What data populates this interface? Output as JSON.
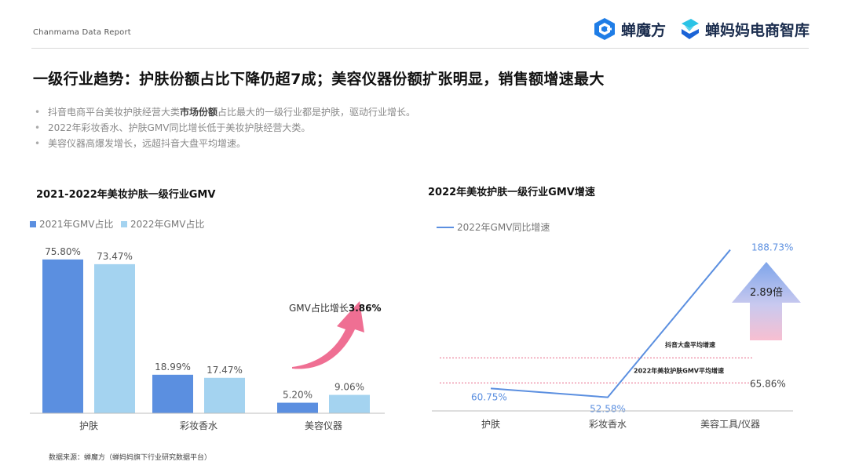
{
  "header": {
    "report_label": "Chanmama Data Report",
    "logo_primary_text": "蝉魔方",
    "logo_secondary_text": "蝉妈妈电商智库"
  },
  "title": "一级行业趋势：护肤份额占比下降仍超7成；美容仪器份额扩张明显，销售额增速最大",
  "bullets": [
    {
      "before": "抖音电商平台美妆护肤经营大类",
      "bold": "市场份额",
      "after": "占比最大的一级行业都是护肤，驱动行业增长。"
    },
    {
      "before": "2022年彩妆香水、护肤GMV同比增长低于美妆护肤经营大类。",
      "bold": "",
      "after": ""
    },
    {
      "before": "美容仪器高爆发增长，远超抖音大盘平均增速。",
      "bold": "",
      "after": ""
    }
  ],
  "chart_data": [
    {
      "type": "bar",
      "title": "2021-2022年美妆护肤一级行业GMV",
      "categories": [
        "护肤",
        "彩妆香水",
        "美容仪器"
      ],
      "series": [
        {
          "name": "2021年GMV占比",
          "values": [
            75.8,
            18.99,
            5.2
          ],
          "labels": [
            "75.80%",
            "18.99%",
            "5.20%"
          ],
          "color": "#5b8fe0"
        },
        {
          "name": "2022年GMV占比",
          "values": [
            73.47,
            17.47,
            9.06
          ],
          "labels": [
            "73.47%",
            "17.47%",
            "9.06%"
          ],
          "color": "#a4d3f0"
        }
      ],
      "ylim": [
        0,
        80
      ],
      "legend": "top-left",
      "grid": false,
      "annotation": {
        "prefix": "GMV占比增长",
        "value": "3.86%",
        "arrow_color": "#ef6f93"
      }
    },
    {
      "type": "line",
      "title": "2022年美妆护肤一级行业GMV增速",
      "categories": [
        "护肤",
        "彩妆香水",
        "美容工具/仪器"
      ],
      "series": [
        {
          "name": "2022年GMV同比增速",
          "values": [
            60.75,
            52.58,
            188.73
          ],
          "labels": [
            "60.75%",
            "52.58%",
            "188.73%"
          ],
          "color": "#5b8fe0"
        }
      ],
      "ylim": [
        40,
        200
      ],
      "legend": "top-left",
      "grid": false,
      "reference_lines": [
        {
          "label": "抖音大盘平均增速",
          "value": 89
        },
        {
          "label": "2022年美妆护肤GMV平均增速",
          "value": 65.86,
          "value_label": "65.86%"
        }
      ],
      "annotation": {
        "multiple": "2.89倍"
      }
    }
  ],
  "source": "数据来源：蝉魔方（蝉妈妈旗下行业研究数据平台）"
}
